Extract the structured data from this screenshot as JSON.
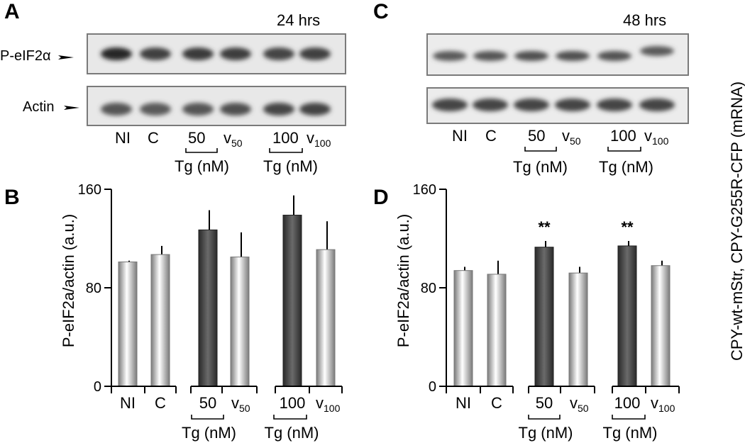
{
  "panels": {
    "A": {
      "label": "A",
      "time": "24 hrs"
    },
    "B": {
      "label": "B"
    },
    "C": {
      "label": "C",
      "time": "48 hrs"
    },
    "D": {
      "label": "D"
    }
  },
  "blots": {
    "p_eif2a_label": "P-eIF2α",
    "actin_label": "Actin"
  },
  "lanes": {
    "ni": "NI",
    "c": "C",
    "tg50": "50",
    "v": "v",
    "v50_sub": "50",
    "tg100": "100",
    "v100_sub": "100",
    "tg_unit": "Tg (nM)"
  },
  "side_label": "CPY-wt-mStr, CPY-G255R-CFP (mRNA)",
  "colors": {
    "treated_bar": "#3c3c3c",
    "control_bar_edge": "#8a8a8a",
    "axis": "#000000"
  },
  "chart_data": [
    {
      "type": "bar",
      "panel": "B",
      "categories": [
        "NI",
        "C",
        "50",
        "v50",
        "100",
        "v100"
      ],
      "series": [
        {
          "values": [
            101,
            107,
            127,
            105,
            139,
            111
          ],
          "errors": [
            1,
            7,
            16,
            20,
            16,
            23
          ]
        }
      ],
      "treated": [
        false,
        false,
        true,
        false,
        true,
        false
      ],
      "significance": [
        "",
        "",
        "",
        "",
        "",
        ""
      ],
      "ylabel": "P-eIF2a/actin (a.u.)",
      "ylim": [
        0,
        160
      ],
      "yticks": [
        "0",
        "80",
        "160"
      ]
    },
    {
      "type": "bar",
      "panel": "D",
      "categories": [
        "NI",
        "C",
        "50",
        "v50",
        "100",
        "v100"
      ],
      "series": [
        {
          "values": [
            94,
            91,
            113,
            92,
            114,
            98
          ],
          "errors": [
            3,
            11,
            5,
            5,
            4,
            4
          ]
        }
      ],
      "treated": [
        false,
        false,
        true,
        false,
        true,
        false
      ],
      "significance": [
        "",
        "",
        "**",
        "",
        "**",
        ""
      ],
      "ylabel": "P-eIF2a/actin (a.u.)",
      "ylim": [
        0,
        160
      ],
      "yticks": [
        "0",
        "80",
        "160"
      ]
    }
  ]
}
